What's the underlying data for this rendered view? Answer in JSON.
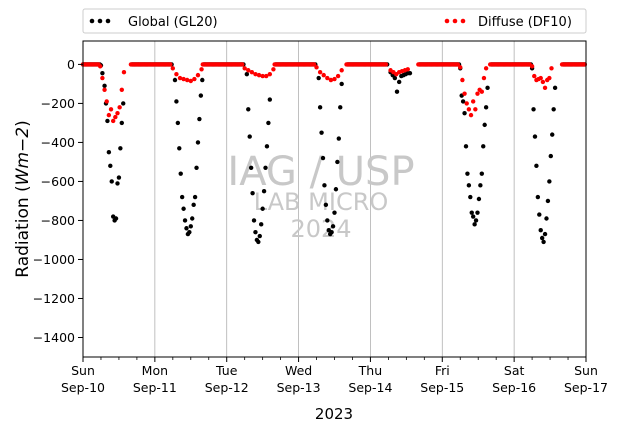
{
  "chart_data": {
    "type": "scatter",
    "xlabel": "2023",
    "ylabel": "Radiation ($Wm{-2}$)",
    "ylabel_main": "Radiation (",
    "ylabel_math_base": "Wm",
    "ylabel_math_exp": "−2",
    "ylabel_close": ")",
    "ylim": [
      -1500,
      120
    ],
    "yticks": [
      0,
      -200,
      -400,
      -600,
      -800,
      -1000,
      -1200,
      -1400
    ],
    "xlim": [
      0,
      7
    ],
    "xticks": [
      {
        "day": "Sun",
        "date": "Sep-10"
      },
      {
        "day": "Mon",
        "date": "Sep-11"
      },
      {
        "day": "Tue",
        "date": "Sep-12"
      },
      {
        "day": "Wed",
        "date": "Sep-13"
      },
      {
        "day": "Thu",
        "date": "Sep-14"
      },
      {
        "day": "Fri",
        "date": "Sep-15"
      },
      {
        "day": "Sat",
        "date": "Sep-16"
      },
      {
        "day": "Sun",
        "date": "Sep-17"
      }
    ],
    "grid": "vertical",
    "legend_placement": "top",
    "watermark": [
      "IAG / USP",
      "LAB MICRO",
      "2024"
    ],
    "series": [
      {
        "name": "Global (GL20)",
        "color": "#000000",
        "points": [
          [
            0.25,
            -5
          ],
          [
            0.27,
            -45
          ],
          [
            0.3,
            -110
          ],
          [
            0.32,
            -200
          ],
          [
            0.34,
            -290
          ],
          [
            0.36,
            -450
          ],
          [
            0.38,
            -520
          ],
          [
            0.4,
            -600
          ],
          [
            0.42,
            -780
          ],
          [
            0.44,
            -800
          ],
          [
            0.46,
            -790
          ],
          [
            0.48,
            -610
          ],
          [
            0.5,
            -580
          ],
          [
            0.52,
            -430
          ],
          [
            0.54,
            -300
          ],
          [
            0.56,
            -200
          ],
          [
            1.28,
            -80
          ],
          [
            1.3,
            -190
          ],
          [
            1.32,
            -300
          ],
          [
            1.34,
            -430
          ],
          [
            1.36,
            -560
          ],
          [
            1.38,
            -680
          ],
          [
            1.4,
            -740
          ],
          [
            1.42,
            -800
          ],
          [
            1.44,
            -840
          ],
          [
            1.46,
            -870
          ],
          [
            1.48,
            -860
          ],
          [
            1.5,
            -830
          ],
          [
            1.52,
            -790
          ],
          [
            1.54,
            -720
          ],
          [
            1.56,
            -680
          ],
          [
            1.58,
            -530
          ],
          [
            1.6,
            -400
          ],
          [
            1.62,
            -280
          ],
          [
            1.64,
            -160
          ],
          [
            1.66,
            -80
          ],
          [
            2.28,
            -50
          ],
          [
            2.3,
            -230
          ],
          [
            2.32,
            -370
          ],
          [
            2.34,
            -530
          ],
          [
            2.36,
            -660
          ],
          [
            2.38,
            -800
          ],
          [
            2.4,
            -860
          ],
          [
            2.42,
            -900
          ],
          [
            2.44,
            -910
          ],
          [
            2.46,
            -880
          ],
          [
            2.48,
            -820
          ],
          [
            2.5,
            -740
          ],
          [
            2.52,
            -650
          ],
          [
            2.54,
            -530
          ],
          [
            2.56,
            -420
          ],
          [
            2.58,
            -300
          ],
          [
            2.6,
            -180
          ],
          [
            3.28,
            -70
          ],
          [
            3.3,
            -220
          ],
          [
            3.32,
            -350
          ],
          [
            3.34,
            -480
          ],
          [
            3.36,
            -620
          ],
          [
            3.38,
            -720
          ],
          [
            3.4,
            -800
          ],
          [
            3.42,
            -850
          ],
          [
            3.44,
            -870
          ],
          [
            3.46,
            -860
          ],
          [
            3.48,
            -830
          ],
          [
            3.5,
            -760
          ],
          [
            3.52,
            -640
          ],
          [
            3.54,
            -500
          ],
          [
            3.56,
            -380
          ],
          [
            3.58,
            -220
          ],
          [
            3.6,
            -100
          ],
          [
            4.28,
            -40
          ],
          [
            4.31,
            -55
          ],
          [
            4.34,
            -70
          ],
          [
            4.37,
            -140
          ],
          [
            4.4,
            -90
          ],
          [
            4.43,
            -60
          ],
          [
            4.46,
            -55
          ],
          [
            4.49,
            -50
          ],
          [
            4.52,
            -45
          ],
          [
            4.55,
            -45
          ],
          [
            5.25,
            -20
          ],
          [
            5.27,
            -160
          ],
          [
            5.29,
            -190
          ],
          [
            5.31,
            -250
          ],
          [
            5.33,
            -420
          ],
          [
            5.35,
            -560
          ],
          [
            5.37,
            -620
          ],
          [
            5.39,
            -680
          ],
          [
            5.41,
            -760
          ],
          [
            5.43,
            -780
          ],
          [
            5.45,
            -820
          ],
          [
            5.47,
            -800
          ],
          [
            5.49,
            -760
          ],
          [
            5.51,
            -690
          ],
          [
            5.53,
            -620
          ],
          [
            5.55,
            -560
          ],
          [
            5.57,
            -420
          ],
          [
            5.59,
            -310
          ],
          [
            5.61,
            -220
          ],
          [
            5.63,
            -120
          ],
          [
            6.25,
            -20
          ],
          [
            6.27,
            -230
          ],
          [
            6.29,
            -370
          ],
          [
            6.31,
            -520
          ],
          [
            6.33,
            -680
          ],
          [
            6.35,
            -770
          ],
          [
            6.37,
            -850
          ],
          [
            6.39,
            -890
          ],
          [
            6.41,
            -910
          ],
          [
            6.43,
            -870
          ],
          [
            6.45,
            -790
          ],
          [
            6.47,
            -700
          ],
          [
            6.49,
            -600
          ],
          [
            6.51,
            -470
          ],
          [
            6.53,
            -360
          ],
          [
            6.55,
            -230
          ],
          [
            6.57,
            -120
          ]
        ]
      },
      {
        "name": "Diffuse (DF10)",
        "color": "#ff0000",
        "points": [
          [
            0.24,
            -10
          ],
          [
            0.27,
            -70
          ],
          [
            0.3,
            -130
          ],
          [
            0.33,
            -190
          ],
          [
            0.36,
            -260
          ],
          [
            0.39,
            -230
          ],
          [
            0.42,
            -290
          ],
          [
            0.45,
            -270
          ],
          [
            0.48,
            -250
          ],
          [
            0.51,
            -220
          ],
          [
            0.54,
            -130
          ],
          [
            0.57,
            -40
          ],
          [
            1.25,
            -20
          ],
          [
            1.3,
            -50
          ],
          [
            1.35,
            -70
          ],
          [
            1.4,
            -75
          ],
          [
            1.45,
            -80
          ],
          [
            1.5,
            -85
          ],
          [
            1.55,
            -75
          ],
          [
            1.6,
            -55
          ],
          [
            1.65,
            -25
          ],
          [
            2.25,
            -20
          ],
          [
            2.3,
            -30
          ],
          [
            2.35,
            -40
          ],
          [
            2.4,
            -50
          ],
          [
            2.45,
            -55
          ],
          [
            2.5,
            -60
          ],
          [
            2.55,
            -60
          ],
          [
            2.6,
            -50
          ],
          [
            2.65,
            -25
          ],
          [
            3.25,
            -15
          ],
          [
            3.3,
            -40
          ],
          [
            3.35,
            -55
          ],
          [
            3.4,
            -70
          ],
          [
            3.45,
            -80
          ],
          [
            3.5,
            -75
          ],
          [
            3.55,
            -60
          ],
          [
            3.6,
            -30
          ],
          [
            4.28,
            -30
          ],
          [
            4.32,
            -40
          ],
          [
            4.36,
            -50
          ],
          [
            4.4,
            -40
          ],
          [
            4.44,
            -35
          ],
          [
            4.48,
            -30
          ],
          [
            4.52,
            -25
          ],
          [
            5.25,
            -15
          ],
          [
            5.28,
            -80
          ],
          [
            5.31,
            -150
          ],
          [
            5.34,
            -200
          ],
          [
            5.37,
            -230
          ],
          [
            5.4,
            -260
          ],
          [
            5.43,
            -190
          ],
          [
            5.46,
            -230
          ],
          [
            5.49,
            -150
          ],
          [
            5.52,
            -130
          ],
          [
            5.55,
            -140
          ],
          [
            5.58,
            -70
          ],
          [
            5.61,
            -20
          ],
          [
            6.25,
            -10
          ],
          [
            6.28,
            -60
          ],
          [
            6.31,
            -80
          ],
          [
            6.34,
            -75
          ],
          [
            6.37,
            -70
          ],
          [
            6.4,
            -90
          ],
          [
            6.43,
            -120
          ],
          [
            6.46,
            -80
          ],
          [
            6.49,
            -70
          ],
          [
            6.52,
            -20
          ]
        ]
      }
    ]
  }
}
